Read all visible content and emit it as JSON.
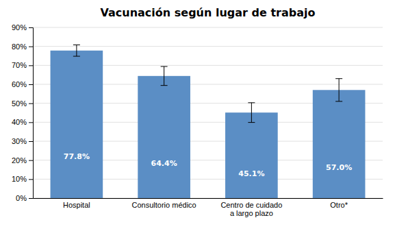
{
  "chart_data": {
    "type": "bar",
    "title": "Vacunación según lugar de trabajo",
    "categories": [
      "Hospital",
      "Consultorio médico",
      "Centro de cuidado\na largo plazo",
      "Otro*"
    ],
    "values": [
      77.8,
      64.4,
      45.1,
      57.0
    ],
    "errors": [
      3.0,
      5.0,
      5.2,
      6.0
    ],
    "value_labels": [
      "77.8%",
      "64.4%",
      "45.1%",
      "57.0%"
    ],
    "data_labels": true,
    "color": "#5B8EC5",
    "ylim": [
      0,
      90
    ],
    "yticks": [
      {
        "value": 0,
        "label": "0%"
      },
      {
        "value": 10,
        "label": "10%"
      },
      {
        "value": 20,
        "label": "20%"
      },
      {
        "value": 30,
        "label": "30%"
      },
      {
        "value": 40,
        "label": "40%"
      },
      {
        "value": 50,
        "label": "50%"
      },
      {
        "value": 60,
        "label": "60%"
      },
      {
        "value": 70,
        "label": "70%"
      },
      {
        "value": 80,
        "label": "80%"
      },
      {
        "value": 90,
        "label": "90%"
      }
    ],
    "grid": true
  }
}
